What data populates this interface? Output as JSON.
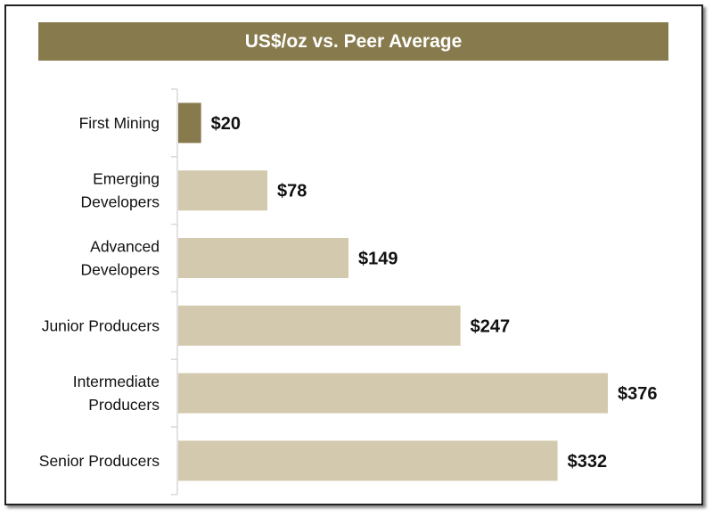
{
  "chart_data": {
    "type": "bar",
    "orientation": "horizontal",
    "title": "US$/oz vs. Peer Average",
    "categories": [
      [
        "First Mining"
      ],
      [
        "Emerging",
        "Developers"
      ],
      [
        "Advanced",
        "Developers"
      ],
      [
        "Junior Producers"
      ],
      [
        "Intermediate",
        "Producers"
      ],
      [
        "Senior Producers"
      ]
    ],
    "values": [
      20,
      78,
      149,
      247,
      376,
      332
    ],
    "labels": [
      "$20",
      "$78",
      "$149",
      "$247",
      "$376",
      "$332"
    ],
    "xlim": [
      0,
      376
    ],
    "grid": false,
    "colors": {
      "highlight": "#877a4c",
      "peer": "#d3c9ae",
      "title_bg": "#877a4c"
    },
    "highlight_index": 0
  }
}
